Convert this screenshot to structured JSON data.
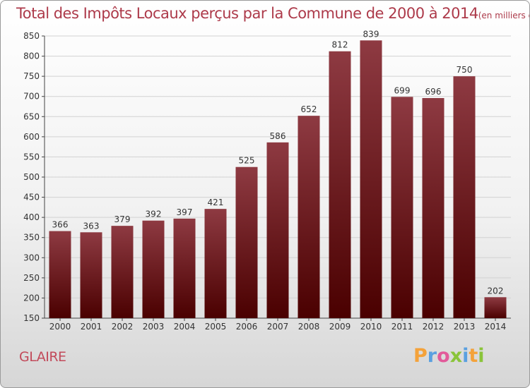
{
  "title": "Total des Impôts Locaux perçus par la Commune de 2000 à 2014",
  "unit": "(en milliers d'€)",
  "commune": "GLAIRE",
  "logo_parts": [
    "P",
    "r",
    "o",
    "x",
    "i",
    "t",
    "i"
  ],
  "colors": {
    "bar_top": "#8e3a42",
    "bar_bottom": "#4a0000",
    "title": "#ad3a4a"
  },
  "chart_data": {
    "type": "bar",
    "categories": [
      "2000",
      "2001",
      "2002",
      "2003",
      "2004",
      "2005",
      "2006",
      "2007",
      "2008",
      "2009",
      "2010",
      "2011",
      "2012",
      "2013",
      "2014"
    ],
    "values": [
      366,
      363,
      379,
      392,
      397,
      421,
      525,
      586,
      652,
      812,
      839,
      699,
      696,
      750,
      202
    ],
    "ylim": [
      150,
      850
    ],
    "yticks": [
      150,
      200,
      250,
      300,
      350,
      400,
      450,
      500,
      550,
      600,
      650,
      700,
      750,
      800,
      850
    ],
    "grid": true,
    "legend": "none"
  }
}
